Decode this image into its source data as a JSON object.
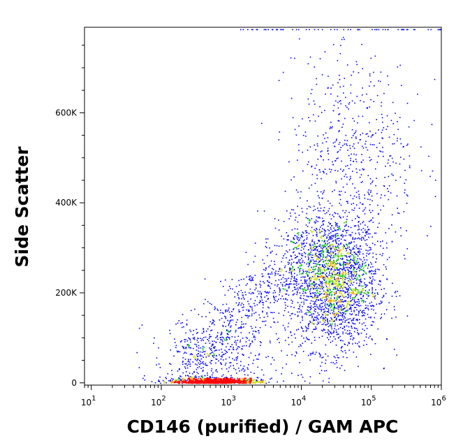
{
  "chart_data": {
    "type": "scatter",
    "title": "",
    "xlabel": "CD146 (purified) / GAM APC",
    "ylabel": "Side Scatter",
    "x_scale": "log",
    "xlim": [
      8,
      1000000
    ],
    "ylim": [
      -5000,
      790000
    ],
    "grid": false,
    "legend": "none",
    "x_ticks": [
      {
        "base": "10",
        "exp": "1",
        "value": 10
      },
      {
        "base": "10",
        "exp": "2",
        "value": 100
      },
      {
        "base": "10",
        "exp": "3",
        "value": 1000
      },
      {
        "base": "10",
        "exp": "4",
        "value": 10000
      },
      {
        "base": "10",
        "exp": "5",
        "value": 100000
      },
      {
        "base": "10",
        "exp": "6",
        "value": 1000000
      }
    ],
    "y_ticks": [
      {
        "label": "0",
        "value": 0
      },
      {
        "label": "200K",
        "value": 200000
      },
      {
        "label": "400K",
        "value": 400000
      },
      {
        "label": "600K",
        "value": 600000
      }
    ],
    "density_colors": [
      "#0000ff",
      "#00c800",
      "#c8e000",
      "#ffa000",
      "#ff0000"
    ],
    "populations": [
      {
        "kind": "main_cluster",
        "log_x_center": 4.45,
        "log_x_sd": 0.32,
        "y_center": 225000,
        "y_sd": 75000,
        "count": 2400
      },
      {
        "kind": "upper_tail",
        "log_x_center": 4.75,
        "log_x_sd": 0.45,
        "y_center": 480000,
        "y_sd": 110000,
        "count": 500
      },
      {
        "kind": "diagonal_bridge",
        "log_x_start": 2.3,
        "log_x_end": 4.1,
        "y_start": 30000,
        "y_end": 300000,
        "spread": 40000,
        "count": 700
      },
      {
        "kind": "baseline_low",
        "log_x_center": 2.75,
        "log_x_sd": 0.33,
        "y_center": 4000,
        "y_sd": 5000,
        "count": 900
      },
      {
        "kind": "low_scatter",
        "log_x_center": 2.8,
        "log_x_sd": 0.5,
        "y_center": 55000,
        "y_sd": 45000,
        "count": 300
      },
      {
        "kind": "sparse_outliers",
        "log_x_center": 4.8,
        "log_x_sd": 0.55,
        "y_center": 650000,
        "y_sd": 80000,
        "count": 70
      }
    ],
    "top_edge_events": {
      "log_x_range": [
        3.0,
        6.0
      ],
      "count": 60
    }
  }
}
